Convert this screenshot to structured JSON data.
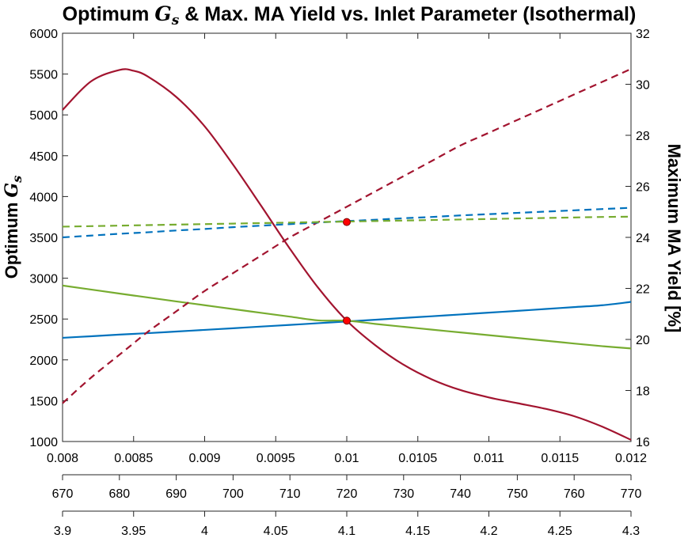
{
  "chart_data": {
    "type": "line",
    "title": {
      "prefix": "Optimum ",
      "symbol": "G",
      "subscript": "s",
      "suffix": " & Max. MA Yield vs. Inlet Parameter (Isothermal)"
    },
    "ylabel_left": {
      "prefix": "Optimum ",
      "symbol": "G",
      "subscript": "s"
    },
    "ylabel_right": "Maximum MA Yield [%]",
    "x_axes": [
      {
        "ticks": [
          "0.008",
          "0.0085",
          "0.009",
          "0.0095",
          "0.01",
          "0.0105",
          "0.011",
          "0.0115",
          "0.012"
        ],
        "lim": [
          0.008,
          0.012
        ]
      },
      {
        "ticks": [
          "670",
          "680",
          "690",
          "700",
          "710",
          "720",
          "730",
          "740",
          "750",
          "760",
          "770"
        ],
        "lim": [
          670,
          770
        ]
      },
      {
        "ticks": [
          "3.9",
          "3.95",
          "4",
          "4.05",
          "4.1",
          "4.15",
          "4.2",
          "4.25",
          "4.3"
        ],
        "lim": [
          3.9,
          4.3
        ]
      }
    ],
    "y_left": {
      "lim": [
        1000,
        6000
      ],
      "ticks": [
        "1000",
        "1500",
        "2000",
        "2500",
        "3000",
        "3500",
        "4000",
        "4500",
        "5000",
        "5500",
        "6000"
      ]
    },
    "y_right": {
      "lim": [
        16,
        32
      ],
      "ticks": [
        "16",
        "18",
        "20",
        "22",
        "24",
        "26",
        "28",
        "30",
        "32"
      ]
    },
    "x": [
      0.008,
      0.0082,
      0.0084,
      0.0085,
      0.0086,
      0.0088,
      0.009,
      0.0092,
      0.0094,
      0.0096,
      0.0098,
      0.01,
      0.0102,
      0.0104,
      0.0106,
      0.0108,
      0.011,
      0.0112,
      0.0114,
      0.0116,
      0.0118,
      0.012
    ],
    "series": [
      {
        "color": "#a2142f",
        "dash": false,
        "axis": "left",
        "values": [
          5060,
          5410,
          5550,
          5540,
          5470,
          5220,
          4860,
          4390,
          3880,
          3360,
          2880,
          2480,
          2180,
          1940,
          1760,
          1630,
          1540,
          1470,
          1400,
          1310,
          1180,
          1020
        ]
      },
      {
        "color": "#0072bd",
        "dash": false,
        "axis": "left",
        "values": [
          2270,
          2289,
          2309,
          2318,
          2327,
          2347,
          2367,
          2387,
          2408,
          2428,
          2449,
          2470,
          2491,
          2513,
          2534,
          2556,
          2578,
          2600,
          2623,
          2646,
          2669,
          2710
        ]
      },
      {
        "color": "#77ac30",
        "dash": false,
        "axis": "left",
        "values": [
          2910,
          2861,
          2812,
          2788,
          2764,
          2716,
          2669,
          2622,
          2575,
          2529,
          2483,
          2480,
          2440,
          2405,
          2370,
          2336,
          2302,
          2268,
          2234,
          2200,
          2167,
          2140
        ]
      },
      {
        "color": "#a2142f",
        "dash": true,
        "axis": "right",
        "values": [
          17.5,
          18.5,
          19.4,
          19.85,
          20.3,
          21.1,
          21.9,
          22.6,
          23.3,
          24.0,
          24.6,
          25.2,
          25.8,
          26.4,
          27.0,
          27.6,
          28.1,
          28.6,
          29.1,
          29.6,
          30.1,
          30.6
        ]
      },
      {
        "color": "#0072bd",
        "dash": true,
        "axis": "right",
        "values": [
          24.0,
          24.07,
          24.14,
          24.17,
          24.2,
          24.27,
          24.33,
          24.4,
          24.46,
          24.52,
          24.58,
          24.64,
          24.69,
          24.75,
          24.8,
          24.86,
          24.91,
          24.96,
          25.01,
          25.06,
          25.11,
          25.16
        ]
      },
      {
        "color": "#77ac30",
        "dash": true,
        "axis": "right",
        "values": [
          24.42,
          24.44,
          24.46,
          24.47,
          24.48,
          24.5,
          24.52,
          24.54,
          24.56,
          24.58,
          24.6,
          24.62,
          24.64,
          24.66,
          24.68,
          24.7,
          24.72,
          24.74,
          24.76,
          24.78,
          24.8,
          24.81
        ]
      }
    ],
    "markers": [
      {
        "x": 0.01,
        "value": 2480,
        "axis": "left",
        "color": "#ff0000"
      },
      {
        "x": 0.01,
        "value": 24.6,
        "axis": "right",
        "color": "#ff0000"
      }
    ]
  }
}
